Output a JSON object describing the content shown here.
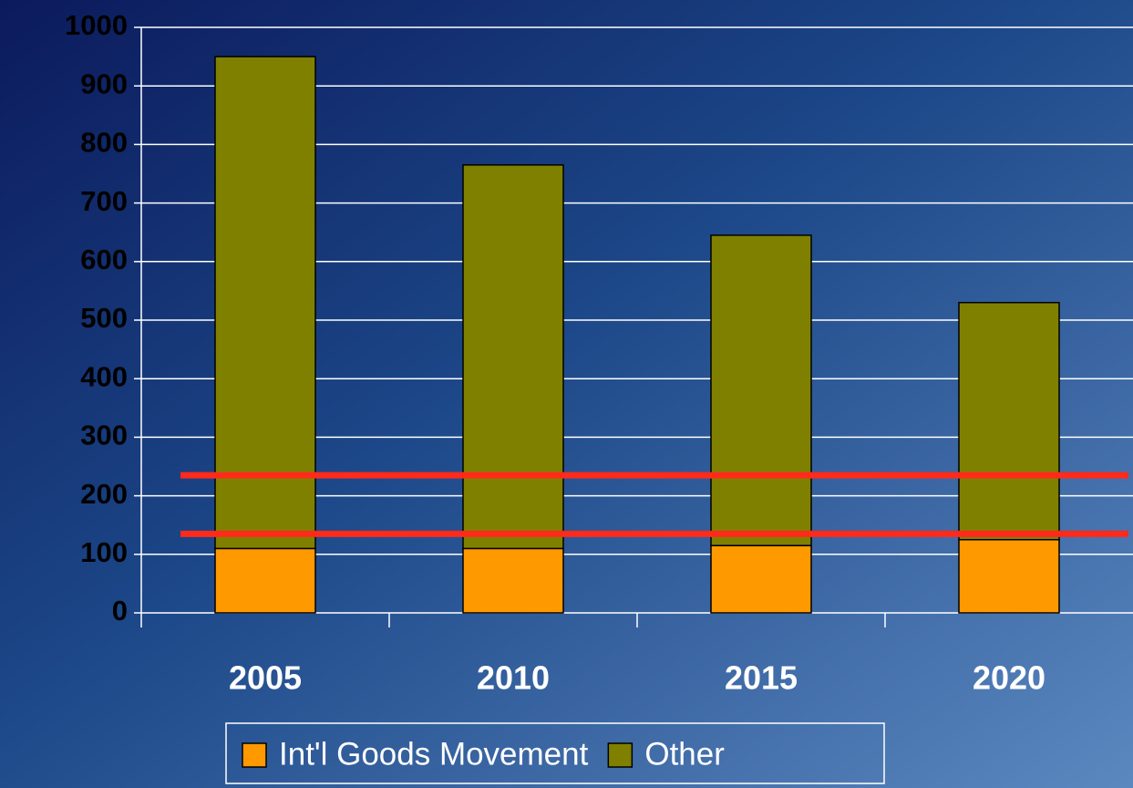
{
  "chart_data": {
    "type": "stacked_bar",
    "categories": [
      "2005",
      "2010",
      "2015",
      "2020"
    ],
    "series": [
      {
        "name": "Int'l Goods Movement",
        "color": "#ff9900",
        "values": [
          110,
          110,
          115,
          125
        ]
      },
      {
        "name": "Other",
        "color": "#808000",
        "values": [
          840,
          655,
          530,
          405
        ]
      }
    ],
    "ylim": [
      0,
      1000
    ],
    "yticks": [
      0,
      100,
      200,
      300,
      400,
      500,
      600,
      700,
      800,
      900,
      1000
    ],
    "grid": true,
    "reference_lines": {
      "color": "#ff2a1a",
      "values": [
        235,
        135
      ]
    },
    "legend": "bottom"
  }
}
